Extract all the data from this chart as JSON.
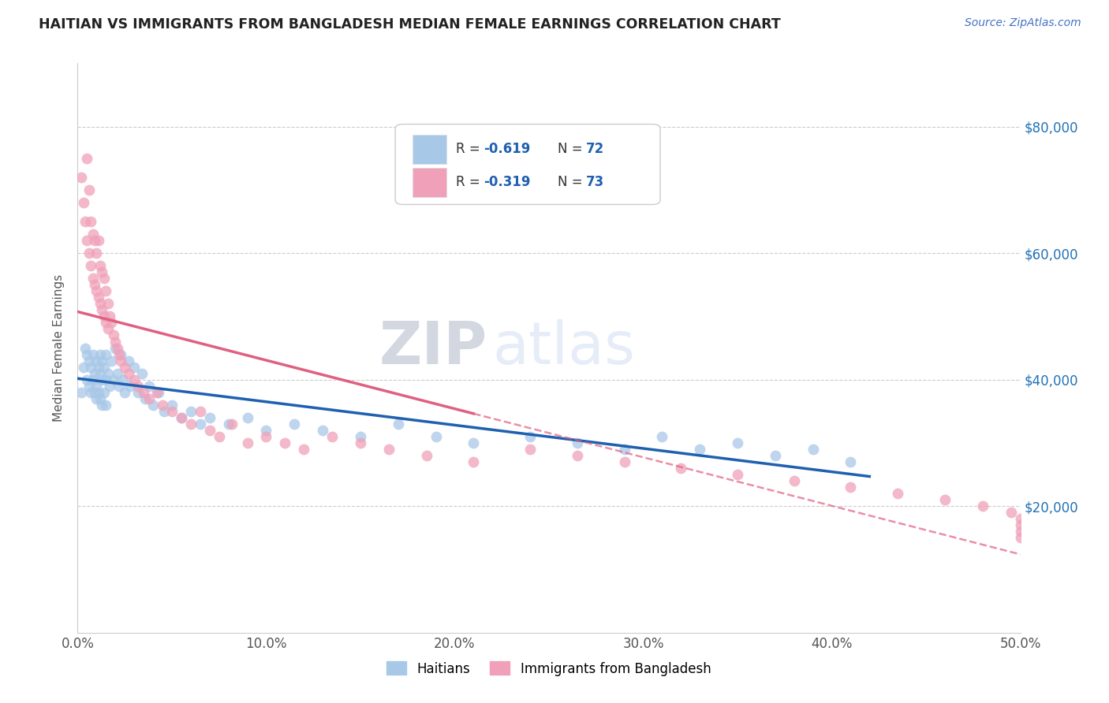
{
  "title": "HAITIAN VS IMMIGRANTS FROM BANGLADESH MEDIAN FEMALE EARNINGS CORRELATION CHART",
  "source": "Source: ZipAtlas.com",
  "ylabel": "Median Female Earnings",
  "x_min": 0.0,
  "x_max": 0.5,
  "y_min": 0,
  "y_max": 90000,
  "x_ticks": [
    0.0,
    0.1,
    0.2,
    0.3,
    0.4,
    0.5
  ],
  "x_tick_labels": [
    "0.0%",
    "10.0%",
    "20.0%",
    "30.0%",
    "40.0%",
    "50.0%"
  ],
  "y_ticks": [
    20000,
    40000,
    60000,
    80000
  ],
  "y_tick_labels": [
    "$20,000",
    "$40,000",
    "$60,000",
    "$80,000"
  ],
  "legend_label1": "Haitians",
  "legend_label2": "Immigrants from Bangladesh",
  "color_blue": "#a8c8e8",
  "color_pink": "#f0a0b8",
  "color_blue_line": "#2060b0",
  "color_pink_line": "#e06080",
  "watermark_zip": "ZIP",
  "watermark_atlas": "atlas",
  "haitian_x": [
    0.002,
    0.003,
    0.004,
    0.005,
    0.005,
    0.006,
    0.006,
    0.007,
    0.007,
    0.008,
    0.008,
    0.009,
    0.009,
    0.01,
    0.01,
    0.01,
    0.011,
    0.011,
    0.012,
    0.012,
    0.012,
    0.013,
    0.013,
    0.013,
    0.014,
    0.014,
    0.015,
    0.015,
    0.015,
    0.016,
    0.017,
    0.018,
    0.019,
    0.02,
    0.021,
    0.022,
    0.023,
    0.024,
    0.025,
    0.027,
    0.028,
    0.03,
    0.032,
    0.034,
    0.036,
    0.038,
    0.04,
    0.043,
    0.046,
    0.05,
    0.055,
    0.06,
    0.065,
    0.07,
    0.08,
    0.09,
    0.1,
    0.115,
    0.13,
    0.15,
    0.17,
    0.19,
    0.21,
    0.24,
    0.265,
    0.29,
    0.31,
    0.33,
    0.35,
    0.37,
    0.39,
    0.41
  ],
  "haitian_y": [
    38000,
    42000,
    45000,
    44000,
    40000,
    43000,
    39000,
    42000,
    38000,
    44000,
    40000,
    41000,
    38000,
    43000,
    39000,
    37000,
    42000,
    38000,
    44000,
    41000,
    37000,
    43000,
    40000,
    36000,
    42000,
    38000,
    44000,
    40000,
    36000,
    41000,
    39000,
    43000,
    40000,
    45000,
    41000,
    39000,
    44000,
    40000,
    38000,
    43000,
    39000,
    42000,
    38000,
    41000,
    37000,
    39000,
    36000,
    38000,
    35000,
    36000,
    34000,
    35000,
    33000,
    34000,
    33000,
    34000,
    32000,
    33000,
    32000,
    31000,
    33000,
    31000,
    30000,
    31000,
    30000,
    29000,
    31000,
    29000,
    30000,
    28000,
    29000,
    27000
  ],
  "bangladesh_x": [
    0.002,
    0.003,
    0.004,
    0.005,
    0.005,
    0.006,
    0.006,
    0.007,
    0.007,
    0.008,
    0.008,
    0.009,
    0.009,
    0.01,
    0.01,
    0.011,
    0.011,
    0.012,
    0.012,
    0.013,
    0.013,
    0.014,
    0.014,
    0.015,
    0.015,
    0.016,
    0.016,
    0.017,
    0.018,
    0.019,
    0.02,
    0.021,
    0.022,
    0.023,
    0.025,
    0.027,
    0.03,
    0.032,
    0.035,
    0.038,
    0.042,
    0.045,
    0.05,
    0.055,
    0.06,
    0.065,
    0.07,
    0.075,
    0.082,
    0.09,
    0.1,
    0.11,
    0.12,
    0.135,
    0.15,
    0.165,
    0.185,
    0.21,
    0.24,
    0.265,
    0.29,
    0.32,
    0.35,
    0.38,
    0.41,
    0.435,
    0.46,
    0.48,
    0.495,
    0.5,
    0.5,
    0.5,
    0.5
  ],
  "bangladesh_y": [
    72000,
    68000,
    65000,
    75000,
    62000,
    70000,
    60000,
    65000,
    58000,
    63000,
    56000,
    62000,
    55000,
    60000,
    54000,
    62000,
    53000,
    58000,
    52000,
    57000,
    51000,
    56000,
    50000,
    54000,
    49000,
    52000,
    48000,
    50000,
    49000,
    47000,
    46000,
    45000,
    44000,
    43000,
    42000,
    41000,
    40000,
    39000,
    38000,
    37000,
    38000,
    36000,
    35000,
    34000,
    33000,
    35000,
    32000,
    31000,
    33000,
    30000,
    31000,
    30000,
    29000,
    31000,
    30000,
    29000,
    28000,
    27000,
    29000,
    28000,
    27000,
    26000,
    25000,
    24000,
    23000,
    22000,
    21000,
    20000,
    19000,
    18000,
    17000,
    16000,
    15000
  ]
}
